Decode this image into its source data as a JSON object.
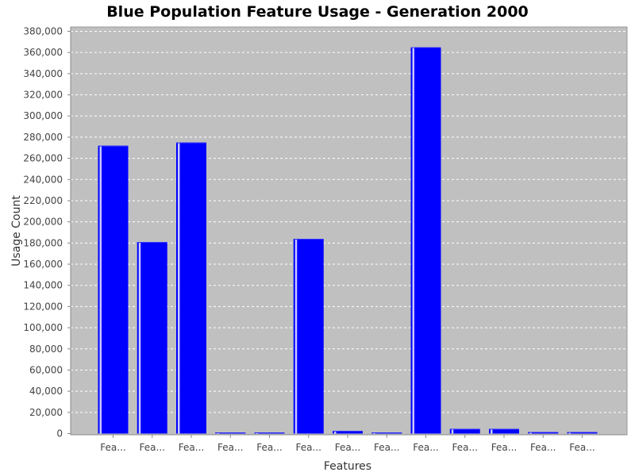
{
  "chart_data": {
    "type": "bar",
    "title": "Blue Population Feature Usage - Generation 2000",
    "xlabel": "Features",
    "ylabel": "Usage Count",
    "categories": [
      "Fea...",
      "Fea...",
      "Fea...",
      "Fea...",
      "Fea...",
      "Fea...",
      "Fea...",
      "Fea...",
      "Fea...",
      "Fea...",
      "Fea...",
      "Fea...",
      "Fea..."
    ],
    "series": [
      {
        "values": [
          272000,
          181000,
          275000,
          300,
          500,
          184000,
          2500,
          1000,
          365000,
          4500,
          4500,
          1500,
          1500
        ]
      }
    ],
    "ylim": [
      0,
      385000
    ],
    "yticks": [
      0,
      20000,
      40000,
      60000,
      80000,
      100000,
      120000,
      140000,
      160000,
      180000,
      200000,
      220000,
      240000,
      260000,
      280000,
      300000,
      320000,
      340000,
      360000,
      380000
    ],
    "ytick_labels": [
      "0",
      "20,000",
      "40,000",
      "60,000",
      "80,000",
      "100,000",
      "120,000",
      "140,000",
      "160,000",
      "180,000",
      "200,000",
      "220,000",
      "240,000",
      "260,000",
      "280,000",
      "300,000",
      "320,000",
      "340,000",
      "360,000",
      "380,000"
    ],
    "grid": true,
    "legend": "none",
    "colors": {
      "bar": "#0000ff",
      "bar_highlight": "#c8c8ff",
      "plot_background": "#c0c0c0",
      "gridline": "#ffffff"
    }
  }
}
